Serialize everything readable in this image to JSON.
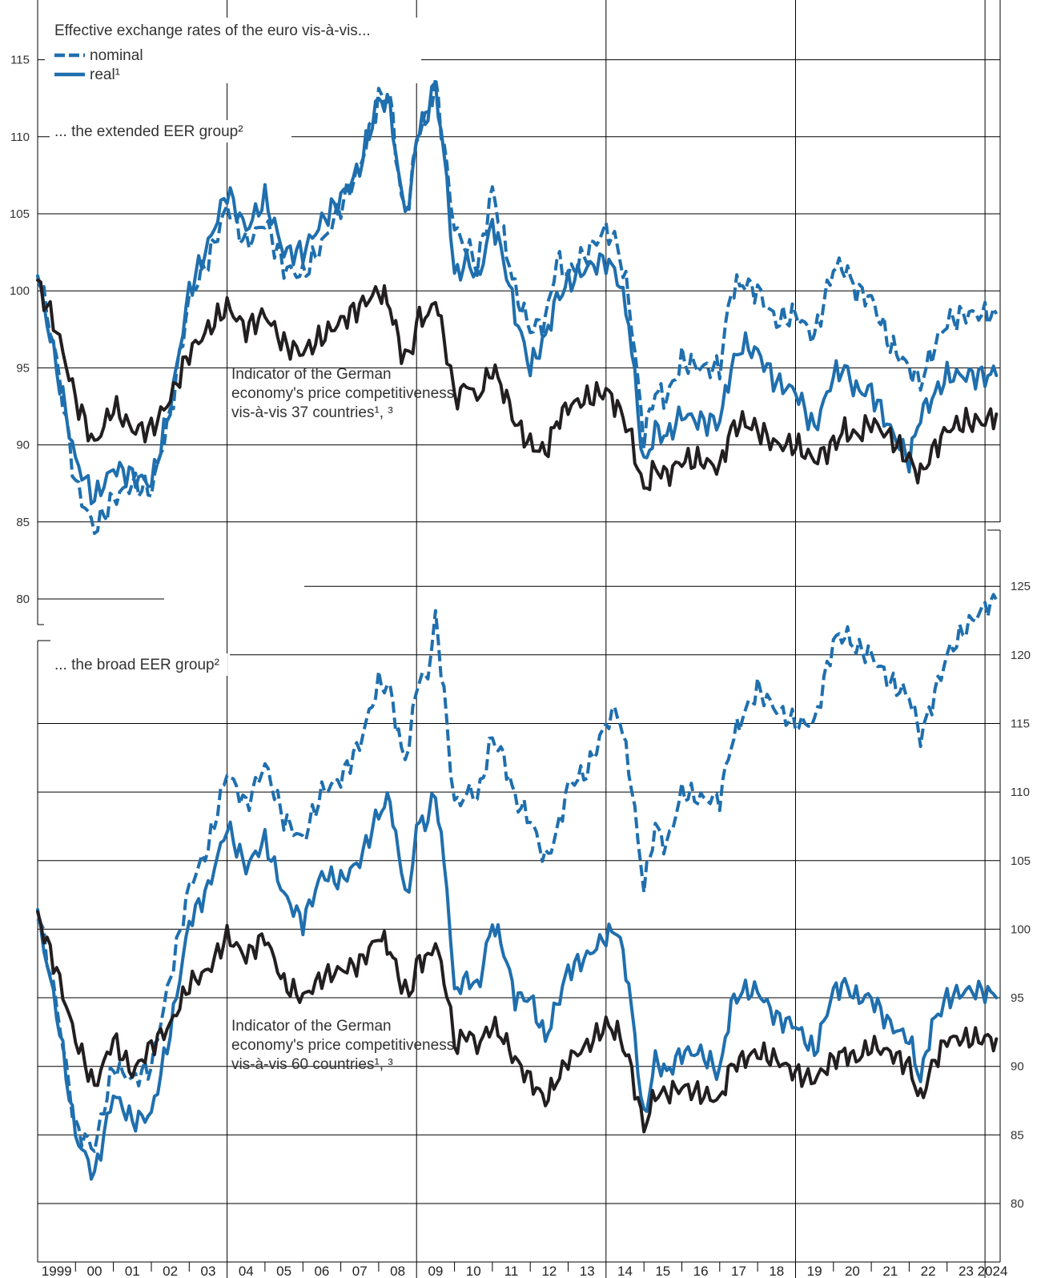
{
  "chart_data": [
    {
      "type": "line",
      "panel": "top",
      "title": "... the extended EER group²",
      "legend": {
        "header": "Effective exchange rates of the euro vis-à-vis...",
        "items": [
          "nominal",
          "real¹"
        ],
        "placement": "top-left"
      },
      "note": [
        "Indicator of the German",
        "economy's price competitiveness",
        "vis-à-vis 37 countries¹, ³"
      ],
      "yaxis": {
        "side": "left",
        "ylim": [
          78,
          117
        ],
        "ticks": [
          80,
          85,
          90,
          95,
          100,
          105,
          110,
          115
        ]
      },
      "x_breakpoints": [
        1999.0,
        1999.5,
        2000.0,
        2000.5,
        2001.0,
        2001.5,
        2002.0,
        2002.5,
        2003.0,
        2003.5,
        2004.0,
        2004.5,
        2005.0,
        2005.5,
        2006.0,
        2006.5,
        2007.0,
        2007.5,
        2008.0,
        2008.3,
        2008.6,
        2008.8,
        2009.0,
        2009.3,
        2009.5,
        2009.8,
        2010.0,
        2010.4,
        2010.6,
        2011.0,
        2011.3,
        2011.6,
        2012.0,
        2012.4,
        2012.7,
        2013.0,
        2013.5,
        2014.0,
        2014.3,
        2014.6,
        2015.0,
        2015.3,
        2015.6,
        2016.0,
        2016.5,
        2017.0,
        2017.3,
        2017.6,
        2018.0,
        2018.5,
        2019.0,
        2019.5,
        2020.0,
        2020.3,
        2020.6,
        2021.0,
        2021.5,
        2022.0,
        2022.3,
        2022.6,
        2023.0,
        2023.5,
        2024.0,
        2024.3
      ],
      "series": [
        {
          "name": "nominal",
          "style": "dashed",
          "color": "#1f6fae",
          "values": [
            101.5,
            95.5,
            87.5,
            84.5,
            86.5,
            87.5,
            87.0,
            92.0,
            99.5,
            102.0,
            105.5,
            103.0,
            104.5,
            101.5,
            101.0,
            103.0,
            105.5,
            108.0,
            112.5,
            112.5,
            106.0,
            105.5,
            110.0,
            111.5,
            113.5,
            108.0,
            104.0,
            102.5,
            101.5,
            106.5,
            103.5,
            100.0,
            97.5,
            98.0,
            102.0,
            101.0,
            102.5,
            104.0,
            103.0,
            99.5,
            90.5,
            93.5,
            93.0,
            95.5,
            95.0,
            95.0,
            100.0,
            100.5,
            100.0,
            98.0,
            98.5,
            97.0,
            101.5,
            101.5,
            100.0,
            99.5,
            96.5,
            95.0,
            94.0,
            96.0,
            98.0,
            98.5,
            98.5,
            98.5
          ]
        },
        {
          "name": "real¹",
          "style": "solid",
          "color": "#1f6fae",
          "values": [
            101.0,
            95.0,
            89.0,
            86.5,
            88.5,
            88.0,
            87.5,
            92.5,
            100.0,
            103.0,
            106.5,
            104.0,
            106.0,
            102.5,
            102.5,
            104.5,
            106.0,
            108.0,
            112.5,
            112.0,
            106.0,
            105.5,
            110.0,
            111.5,
            113.5,
            107.0,
            101.0,
            102.0,
            100.5,
            104.5,
            102.0,
            98.5,
            95.0,
            97.0,
            99.5,
            100.5,
            101.5,
            102.0,
            101.0,
            98.0,
            88.5,
            91.0,
            90.5,
            92.0,
            91.5,
            91.5,
            95.0,
            96.5,
            96.0,
            94.0,
            93.5,
            91.0,
            94.5,
            95.0,
            93.5,
            93.5,
            91.0,
            89.0,
            92.0,
            93.0,
            94.5,
            94.5,
            94.5,
            94.5
          ]
        },
        {
          "name": "Indicator of the German economy's price competitiveness vis-à-vis 37 countries¹, ³",
          "style": "solid",
          "color": "#231f20",
          "values": [
            100.5,
            97.5,
            93.0,
            90.0,
            92.5,
            91.0,
            91.0,
            93.0,
            96.0,
            97.5,
            99.0,
            97.5,
            98.5,
            96.5,
            96.0,
            97.0,
            98.0,
            99.0,
            100.0,
            99.0,
            96.0,
            95.5,
            98.0,
            98.5,
            99.5,
            96.0,
            93.0,
            94.0,
            93.0,
            95.0,
            93.5,
            91.5,
            90.0,
            89.5,
            91.5,
            92.5,
            93.0,
            93.5,
            92.5,
            91.0,
            87.0,
            88.5,
            88.0,
            89.0,
            89.0,
            88.5,
            91.0,
            91.5,
            91.0,
            90.0,
            90.0,
            89.0,
            90.0,
            91.0,
            90.5,
            91.5,
            90.5,
            89.0,
            88.0,
            89.5,
            91.0,
            91.5,
            91.5,
            92.0
          ]
        }
      ]
    },
    {
      "type": "line",
      "panel": "bottom",
      "title": "... the broad EER group²",
      "note": [
        "Indicator of the German",
        "economy's price competitiveness",
        "vis-à-vis 60 countries¹, ³"
      ],
      "yaxis": {
        "side": "right",
        "ylim": [
          79,
          126
        ],
        "ticks": [
          80,
          85,
          90,
          95,
          100,
          105,
          110,
          115,
          120,
          125
        ]
      },
      "x_breakpoints": [
        1999.0,
        1999.5,
        2000.0,
        2000.5,
        2001.0,
        2001.5,
        2002.0,
        2002.5,
        2003.0,
        2003.5,
        2004.0,
        2004.5,
        2005.0,
        2005.5,
        2006.0,
        2006.5,
        2007.0,
        2007.5,
        2008.0,
        2008.3,
        2008.6,
        2008.8,
        2009.0,
        2009.3,
        2009.5,
        2009.8,
        2010.0,
        2010.4,
        2010.6,
        2011.0,
        2011.3,
        2011.6,
        2012.0,
        2012.4,
        2012.7,
        2013.0,
        2013.5,
        2014.0,
        2014.3,
        2014.6,
        2015.0,
        2015.3,
        2015.6,
        2016.0,
        2016.5,
        2017.0,
        2017.3,
        2017.6,
        2018.0,
        2018.5,
        2019.0,
        2019.5,
        2020.0,
        2020.3,
        2020.6,
        2021.0,
        2021.5,
        2022.0,
        2022.3,
        2022.6,
        2023.0,
        2023.5,
        2024.0,
        2024.3
      ],
      "series": [
        {
          "name": "nominal",
          "style": "dashed",
          "color": "#1f6fae",
          "values": [
            101.5,
            94.5,
            85.5,
            84.0,
            90.0,
            89.0,
            90.0,
            96.5,
            103.0,
            106.0,
            111.5,
            109.0,
            112.0,
            108.0,
            106.5,
            110.0,
            111.0,
            113.5,
            118.0,
            117.5,
            113.0,
            113.0,
            118.0,
            118.5,
            123.0,
            115.0,
            109.0,
            110.0,
            109.5,
            114.0,
            112.5,
            109.5,
            108.0,
            105.0,
            107.0,
            110.5,
            111.5,
            115.0,
            116.0,
            112.0,
            103.0,
            107.5,
            106.0,
            110.0,
            109.5,
            109.5,
            113.5,
            115.5,
            117.5,
            116.0,
            115.0,
            115.0,
            121.0,
            121.5,
            120.5,
            120.0,
            118.0,
            117.0,
            114.0,
            116.5,
            120.0,
            122.0,
            123.5,
            124.0
          ]
        },
        {
          "name": "real¹",
          "style": "solid",
          "color": "#1f6fae",
          "values": [
            101.0,
            94.0,
            85.0,
            82.0,
            88.0,
            86.0,
            86.5,
            92.5,
            100.5,
            103.0,
            107.5,
            104.5,
            106.5,
            102.5,
            100.5,
            104.0,
            103.5,
            105.0,
            108.5,
            109.5,
            104.0,
            102.5,
            107.5,
            108.0,
            110.0,
            103.0,
            95.5,
            96.5,
            95.5,
            100.5,
            98.5,
            95.0,
            95.0,
            92.0,
            94.5,
            97.0,
            98.0,
            99.5,
            100.0,
            96.0,
            86.0,
            90.5,
            89.5,
            91.0,
            91.0,
            89.5,
            94.5,
            95.5,
            95.5,
            93.5,
            93.0,
            91.0,
            95.5,
            96.0,
            95.0,
            95.0,
            93.0,
            92.0,
            89.0,
            93.0,
            95.0,
            95.5,
            95.5,
            95.0
          ]
        },
        {
          "name": "Indicator of the German economy's price competitiveness vis-à-vis 60 countries¹, ³",
          "style": "solid",
          "color": "#231f20",
          "values": [
            101.0,
            97.0,
            92.0,
            88.5,
            92.0,
            89.5,
            91.5,
            93.0,
            96.0,
            97.0,
            99.5,
            98.0,
            99.5,
            96.0,
            95.0,
            96.5,
            97.0,
            97.5,
            99.5,
            98.5,
            96.0,
            95.0,
            97.5,
            98.0,
            99.0,
            95.5,
            91.5,
            92.5,
            91.5,
            93.0,
            92.0,
            90.5,
            89.0,
            87.5,
            89.0,
            90.5,
            91.5,
            93.0,
            92.5,
            90.5,
            85.5,
            88.0,
            88.0,
            88.5,
            88.0,
            87.5,
            90.0,
            90.5,
            91.0,
            90.5,
            89.5,
            89.0,
            90.5,
            91.0,
            90.5,
            91.5,
            91.0,
            90.0,
            87.5,
            90.0,
            92.0,
            92.0,
            92.0,
            92.0
          ]
        }
      ]
    }
  ],
  "xaxis": {
    "labels": [
      "1999",
      "00",
      "01",
      "02",
      "03",
      "04",
      "05",
      "06",
      "07",
      "08",
      "09",
      "10",
      "11",
      "12",
      "13",
      "14",
      "15",
      "16",
      "17",
      "18",
      "19",
      "20",
      "21",
      "22",
      "23",
      "2024"
    ],
    "years": [
      1999,
      2000,
      2001,
      2002,
      2003,
      2004,
      2005,
      2006,
      2007,
      2008,
      2009,
      2010,
      2011,
      2012,
      2013,
      2014,
      2015,
      2016,
      2017,
      2018,
      2019,
      2020,
      2021,
      2022,
      2023,
      2024
    ]
  },
  "colors": {
    "blue": "#1f6fae",
    "black": "#231f20",
    "grid": "#000000"
  }
}
